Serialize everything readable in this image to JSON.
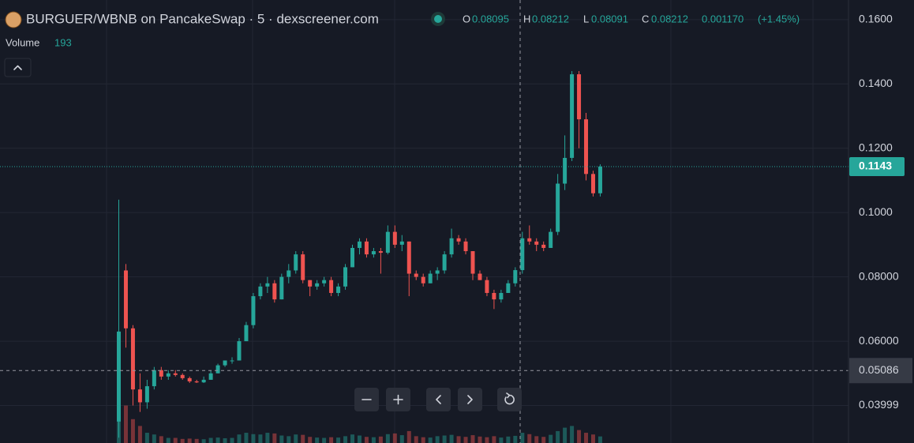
{
  "chart_data": {
    "type": "candlestick",
    "title": "BURGUER/WBNB on PancakeSwap · 5 · dexscreener.com",
    "ohlc_legend": {
      "o_label": "O",
      "o": 0.08095,
      "h_label": "H",
      "h": 0.08212,
      "l_label": "L",
      "l": 0.08091,
      "c_label": "C",
      "c": 0.08212,
      "change": {
        "value": 0.00117,
        "label": "0.001170"
      },
      "change_pct": {
        "value": 1.45,
        "label": "(+1.45%)"
      }
    },
    "volume_label": "Volume",
    "volume_value": 193,
    "up_color": "#26a69a",
    "down_color": "#ef5350",
    "grid": true,
    "ylim": [
      0.02834,
      0.1661
    ],
    "yticks": [
      {
        "value": 0.16,
        "label": "0.1600"
      },
      {
        "value": 0.14,
        "label": "0.1400"
      },
      {
        "value": 0.12,
        "label": "0.1200"
      },
      {
        "value": 0.1,
        "label": "0.1000"
      },
      {
        "value": 0.08,
        "label": "0.08000"
      },
      {
        "value": 0.06,
        "label": "0.06000"
      },
      {
        "value": 0.04,
        "label": "0.03999"
      }
    ],
    "crosshair_price": 0.05086,
    "vlim": [
      0,
      13000
    ],
    "open": [
      0.035,
      0.082,
      0.064,
      0.045,
      0.041,
      0.046,
      0.051,
      0.049,
      0.05,
      0.0495,
      0.0485,
      0.0475,
      0.0472,
      0.048,
      0.05,
      0.0525,
      0.054,
      0.054,
      0.06,
      0.065,
      0.074,
      0.077,
      0.078,
      0.073,
      0.08,
      0.082,
      0.087,
      0.079,
      0.077,
      0.078,
      0.079,
      0.075,
      0.077,
      0.083,
      0.089,
      0.091,
      0.087,
      0.088,
      0.0875,
      0.094,
      0.09,
      0.091,
      0.081,
      0.08,
      0.078,
      0.081,
      0.082,
      0.087,
      0.092,
      0.091,
      0.088,
      0.081,
      0.079,
      0.075,
      0.073,
      0.075,
      0.078,
      0.0821,
      0.092,
      0.091,
      0.09,
      0.089,
      0.094,
      0.109,
      0.117,
      0.143,
      0.129,
      0.112,
      0.106
    ],
    "high": [
      0.104,
      0.084,
      0.065,
      0.05,
      0.048,
      0.052,
      0.052,
      0.051,
      0.051,
      0.05,
      0.049,
      0.048,
      0.049,
      0.051,
      0.053,
      0.054,
      0.055,
      0.061,
      0.066,
      0.075,
      0.078,
      0.08,
      0.079,
      0.081,
      0.084,
      0.088,
      0.088,
      0.079,
      0.079,
      0.08,
      0.08,
      0.078,
      0.084,
      0.09,
      0.092,
      0.092,
      0.089,
      0.089,
      0.096,
      0.096,
      0.093,
      0.091,
      0.082,
      0.081,
      0.082,
      0.083,
      0.088,
      0.095,
      0.093,
      0.092,
      0.088,
      0.082,
      0.08,
      0.076,
      0.076,
      0.079,
      0.083,
      0.094,
      0.096,
      0.092,
      0.091,
      0.095,
      0.112,
      0.124,
      0.144,
      0.144,
      0.131,
      0.113,
      0.115
    ],
    "low": [
      0.03,
      0.058,
      0.04,
      0.038,
      0.039,
      0.045,
      0.048,
      0.048,
      0.049,
      0.048,
      0.047,
      0.047,
      0.047,
      0.048,
      0.05,
      0.052,
      0.053,
      0.054,
      0.06,
      0.064,
      0.073,
      0.075,
      0.072,
      0.073,
      0.078,
      0.081,
      0.078,
      0.074,
      0.076,
      0.077,
      0.074,
      0.074,
      0.076,
      0.083,
      0.087,
      0.086,
      0.086,
      0.081,
      0.087,
      0.089,
      0.088,
      0.074,
      0.079,
      0.077,
      0.078,
      0.079,
      0.081,
      0.086,
      0.09,
      0.087,
      0.079,
      0.079,
      0.074,
      0.07,
      0.072,
      0.075,
      0.077,
      0.081,
      0.09,
      0.088,
      0.088,
      0.089,
      0.093,
      0.107,
      0.116,
      0.12,
      0.11,
      0.105,
      0.105
    ],
    "close": [
      0.063,
      0.064,
      0.045,
      0.041,
      0.046,
      0.051,
      0.049,
      0.05,
      0.0495,
      0.0485,
      0.0475,
      0.0472,
      0.048,
      0.05,
      0.0525,
      0.054,
      0.054,
      0.06,
      0.065,
      0.074,
      0.077,
      0.078,
      0.073,
      0.08,
      0.082,
      0.087,
      0.079,
      0.077,
      0.078,
      0.079,
      0.075,
      0.077,
      0.083,
      0.089,
      0.091,
      0.087,
      0.088,
      0.0875,
      0.094,
      0.09,
      0.091,
      0.081,
      0.08,
      0.078,
      0.081,
      0.082,
      0.087,
      0.092,
      0.091,
      0.088,
      0.081,
      0.079,
      0.075,
      0.073,
      0.075,
      0.078,
      0.0821,
      0.092,
      0.091,
      0.09,
      0.089,
      0.094,
      0.109,
      0.117,
      0.143,
      0.129,
      0.112,
      0.106,
      0.1143
    ],
    "volume": [
      2650,
      1100,
      700,
      500,
      300,
      250,
      200,
      150,
      150,
      120,
      130,
      120,
      110,
      150,
      160,
      140,
      150,
      250,
      300,
      260,
      250,
      300,
      280,
      220,
      200,
      250,
      240,
      180,
      160,
      150,
      170,
      160,
      200,
      250,
      220,
      180,
      170,
      190,
      260,
      280,
      230,
      350,
      200,
      170,
      160,
      200,
      220,
      240,
      200,
      180,
      230,
      190,
      170,
      200,
      160,
      190,
      210,
      300,
      260,
      200,
      180,
      240,
      350,
      450,
      500,
      380,
      300,
      250,
      193
    ]
  }
}
